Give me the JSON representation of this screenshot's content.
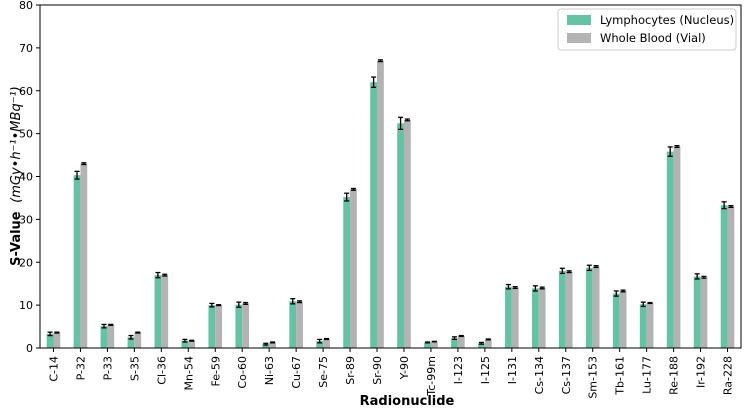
{
  "chart_data": {
    "type": "bar",
    "xlabel": "Radionuclide",
    "ylabel": "S-Value",
    "ylabel_units": "(mGy•h⁻¹•MBq⁻¹)",
    "ylim": [
      0,
      80
    ],
    "yticks": [
      0,
      10,
      20,
      30,
      40,
      50,
      60,
      70,
      80
    ],
    "grid": false,
    "legend_position": "top-right",
    "categories": [
      "C-14",
      "P-32",
      "P-33",
      "S-35",
      "Cl-36",
      "Mn-54",
      "Fe-59",
      "Co-60",
      "Ni-63",
      "Cu-67",
      "Se-75",
      "Sr-89",
      "Sr-90",
      "Y-90",
      "Tc-99m",
      "I-123",
      "I-125",
      "I-131",
      "Cs-134",
      "Cs-137",
      "Sm-153",
      "Tb-161",
      "Lu-177",
      "Re-188",
      "Ir-192",
      "Ra-228"
    ],
    "series": [
      {
        "name": "Lymphocytes (Nucleus)",
        "color": "#66c2a5",
        "values": [
          3.3,
          40.3,
          5.1,
          2.5,
          17.0,
          1.7,
          10.0,
          10.1,
          0.9,
          10.9,
          1.6,
          35.2,
          62.0,
          52.4,
          1.3,
          2.3,
          1.1,
          14.3,
          13.9,
          18.0,
          18.7,
          12.7,
          10.2,
          45.8,
          16.7,
          33.3
        ],
        "errors": [
          0.4,
          0.9,
          0.4,
          0.4,
          0.6,
          0.3,
          0.4,
          0.6,
          0.2,
          0.6,
          0.4,
          0.9,
          1.2,
          1.4,
          0.1,
          0.3,
          0.2,
          0.5,
          0.6,
          0.6,
          0.6,
          0.6,
          0.5,
          1.1,
          0.6,
          0.8
        ]
      },
      {
        "name": "Whole Blood (Vial)",
        "color": "#b3b3b3",
        "values": [
          3.6,
          43.0,
          5.4,
          3.6,
          17.0,
          1.7,
          10.0,
          10.4,
          1.3,
          10.8,
          2.1,
          37.0,
          67.0,
          53.2,
          1.5,
          2.8,
          2.0,
          14.1,
          14.0,
          17.8,
          19.0,
          13.3,
          10.5,
          47.0,
          16.5,
          33.0
        ],
        "errors": [
          0.1,
          0.2,
          0.1,
          0.1,
          0.2,
          0.1,
          0.1,
          0.2,
          0.1,
          0.2,
          0.1,
          0.2,
          0.2,
          0.2,
          0.05,
          0.1,
          0.1,
          0.2,
          0.2,
          0.2,
          0.2,
          0.2,
          0.1,
          0.2,
          0.2,
          0.2
        ]
      }
    ]
  }
}
